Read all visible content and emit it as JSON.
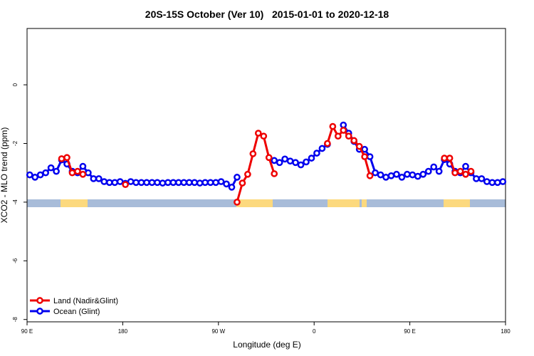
{
  "chart_data": {
    "type": "line",
    "title": "20S-15S October (Ver 10)   2015-01-01 to 2020-12-18",
    "x_label": "Longitude (deg E)",
    "y_label": "XCO2 - MLO trend (ppm)",
    "xlim": [
      90,
      540
    ],
    "ylim": [
      -8.08,
      1.92
    ],
    "xticks": [
      {
        "value": 90,
        "label": "90 E"
      },
      180,
      {
        "value": 270,
        "label": "90 W"
      },
      {
        "value": 360,
        "label": "0"
      },
      {
        "value": 450,
        "label": "90 E"
      },
      {
        "value": 540,
        "label": "180"
      }
    ],
    "yticks": [
      -8,
      -6,
      -4,
      -2,
      0
    ],
    "legend": "bottom-left",
    "x": [
      92.5,
      97.5,
      102.5,
      107.5,
      112.5,
      117.5,
      122.5,
      127.5,
      132.5,
      137.5,
      142.5,
      147.5,
      152.5,
      157.5,
      162.5,
      167.5,
      172.5,
      177.5,
      182.5,
      187.5,
      192.5,
      197.5,
      202.5,
      207.5,
      212.5,
      217.5,
      222.5,
      227.5,
      232.5,
      237.5,
      242.5,
      247.5,
      252.5,
      257.5,
      262.5,
      267.5,
      272.5,
      277.5,
      282.5,
      287.5,
      292.5,
      297.5,
      302.5,
      307.5,
      312.5,
      317.5,
      322.5,
      327.5,
      332.5,
      337.5,
      342.5,
      347.5,
      352.5,
      357.5,
      362.5,
      367.5,
      372.5,
      377.5,
      382.5,
      387.5,
      392.5,
      397.5,
      402.5,
      407.5,
      412.5,
      417.5,
      422.5,
      427.5,
      432.5,
      437.5,
      442.5,
      447.5,
      452.5,
      457.5,
      462.5,
      467.5,
      472.5,
      477.5,
      482.5,
      487.5,
      492.5,
      497.5,
      502.5,
      507.5,
      512.5,
      517.5,
      522.5,
      527.5,
      532.5,
      537.5
    ],
    "series": [
      {
        "name": "Ocean (Glint)",
        "color": "#0000ee",
        "values": [
          -3.07,
          -3.15,
          -3.07,
          -3.0,
          -2.83,
          -2.95,
          -2.56,
          -2.7,
          -2.95,
          -3.0,
          -2.78,
          -3.0,
          -3.2,
          -3.2,
          -3.3,
          -3.33,
          -3.33,
          -3.3,
          -3.36,
          -3.3,
          -3.33,
          -3.33,
          -3.33,
          -3.33,
          -3.33,
          -3.35,
          -3.33,
          -3.33,
          -3.33,
          -3.33,
          -3.33,
          -3.33,
          -3.35,
          -3.33,
          -3.33,
          -3.33,
          -3.3,
          -3.38,
          -3.49,
          -3.15,
          null,
          null,
          null,
          null,
          null,
          null,
          -2.58,
          -2.65,
          -2.53,
          -2.6,
          -2.65,
          -2.73,
          -2.63,
          -2.5,
          -2.33,
          -2.17,
          -2.03,
          null,
          null,
          -1.37,
          -1.65,
          -1.93,
          -2.2,
          -2.2,
          -2.45,
          -3.0,
          -3.07,
          -3.15,
          -3.1,
          -3.05,
          -3.15,
          -3.05,
          -3.07,
          -3.12,
          -3.05,
          -2.95,
          -2.8,
          -2.95,
          -2.55,
          -2.7,
          -2.95,
          -3.0,
          -2.78,
          -3.0,
          -3.2,
          -3.2,
          -3.3,
          -3.33,
          -3.33,
          -3.3
        ]
      },
      {
        "name": "Land (Nadir&Glint)",
        "color": "#ee0000",
        "values": [
          null,
          null,
          null,
          null,
          null,
          null,
          -2.52,
          -2.48,
          -3.0,
          -2.95,
          -3.05,
          null,
          null,
          null,
          null,
          null,
          null,
          null,
          -3.4,
          null,
          null,
          null,
          null,
          null,
          null,
          null,
          null,
          null,
          null,
          null,
          null,
          null,
          null,
          null,
          null,
          null,
          null,
          null,
          null,
          -4.0,
          -3.35,
          -3.05,
          -2.35,
          -1.65,
          -1.75,
          -2.48,
          -3.03,
          null,
          null,
          null,
          null,
          null,
          null,
          null,
          null,
          null,
          -2.0,
          -1.42,
          -1.75,
          -1.55,
          -1.75,
          -1.9,
          -2.1,
          -2.45,
          -3.1,
          null,
          null,
          null,
          null,
          null,
          null,
          null,
          null,
          null,
          null,
          null,
          null,
          null,
          -2.5,
          -2.5,
          -3.0,
          -2.95,
          -3.05,
          -2.95,
          null,
          null,
          null,
          null,
          null,
          null
        ]
      }
    ]
  }
}
